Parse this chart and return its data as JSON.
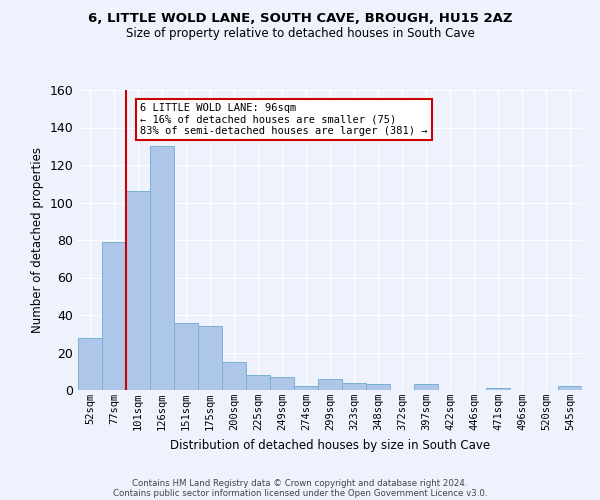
{
  "title": "6, LITTLE WOLD LANE, SOUTH CAVE, BROUGH, HU15 2AZ",
  "subtitle": "Size of property relative to detached houses in South Cave",
  "xlabel": "Distribution of detached houses by size in South Cave",
  "ylabel": "Number of detached properties",
  "bar_color": "#aec6e8",
  "bar_edge_color": "#7aafd4",
  "categories": [
    "52sqm",
    "77sqm",
    "101sqm",
    "126sqm",
    "151sqm",
    "175sqm",
    "200sqm",
    "225sqm",
    "249sqm",
    "274sqm",
    "299sqm",
    "323sqm",
    "348sqm",
    "372sqm",
    "397sqm",
    "422sqm",
    "446sqm",
    "471sqm",
    "496sqm",
    "520sqm",
    "545sqm"
  ],
  "values": [
    28,
    79,
    106,
    130,
    36,
    34,
    15,
    8,
    7,
    2,
    6,
    4,
    3,
    0,
    3,
    0,
    0,
    1,
    0,
    0,
    2
  ],
  "ylim": [
    0,
    160
  ],
  "yticks": [
    0,
    20,
    40,
    60,
    80,
    100,
    120,
    140,
    160
  ],
  "vline_x": 2.0,
  "vline_color": "#cc0000",
  "annotation_line1": "6 LITTLE WOLD LANE: 96sqm",
  "annotation_line2": "← 16% of detached houses are smaller (75)",
  "annotation_line3": "83% of semi-detached houses are larger (381) →",
  "annotation_box_color": "#ffffff",
  "annotation_box_edge": "#cc0000",
  "footer1": "Contains HM Land Registry data © Crown copyright and database right 2024.",
  "footer2": "Contains public sector information licensed under the Open Government Licence v3.0.",
  "bg_color": "#eef2fc",
  "grid_color": "#ffffff"
}
